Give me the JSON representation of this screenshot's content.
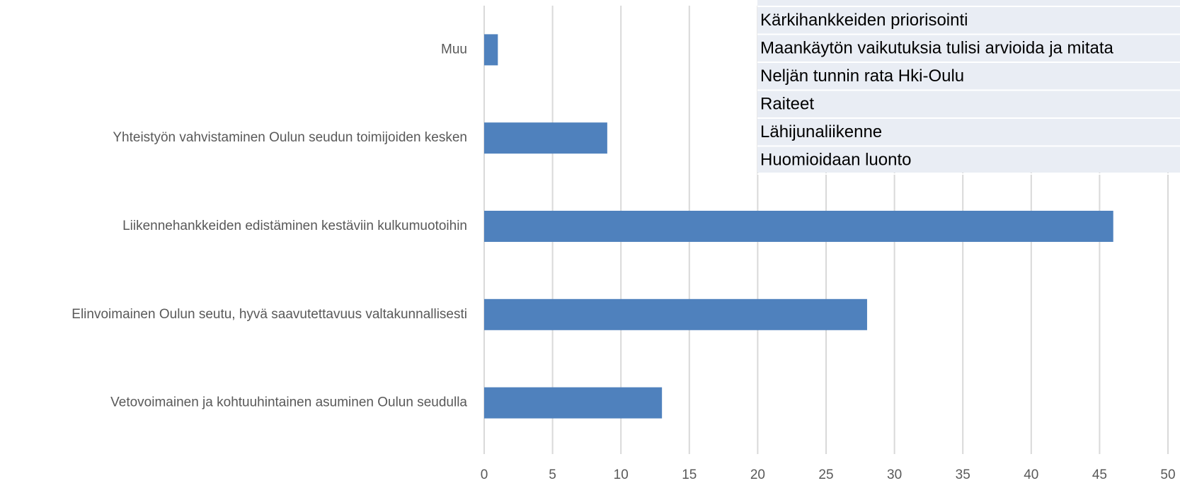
{
  "chart_data": {
    "type": "bar",
    "orientation": "horizontal",
    "categories": [
      "Muu",
      "Yhteistyön vahvistaminen Oulun seudun toimijoiden kesken",
      "Liikennehankkeiden edistäminen kestäviin kulkumuotoihin",
      "Elinvoimainen Oulun seutu, hyvä saavutettavuus valtakunnallisesti",
      "Vetovoimainen ja kohtuuhintainen asuminen Oulun seudulla"
    ],
    "values": [
      1,
      9,
      46,
      28,
      13
    ],
    "color": "#4f81bd",
    "xlim": [
      0,
      50
    ],
    "xticks": [
      0,
      5,
      10,
      15,
      20,
      25,
      30,
      35,
      40,
      45,
      50
    ],
    "grid": true
  },
  "list_box": {
    "items": [
      "Kärkihankkeiden priorisointi",
      "Maankäytön vaikutuksia tulisi arvioida ja mitata",
      "Neljän tunnin rata Hki-Oulu",
      "Raiteet",
      "Lähijunaliikenne",
      "Huomioidaan luonto"
    ]
  }
}
